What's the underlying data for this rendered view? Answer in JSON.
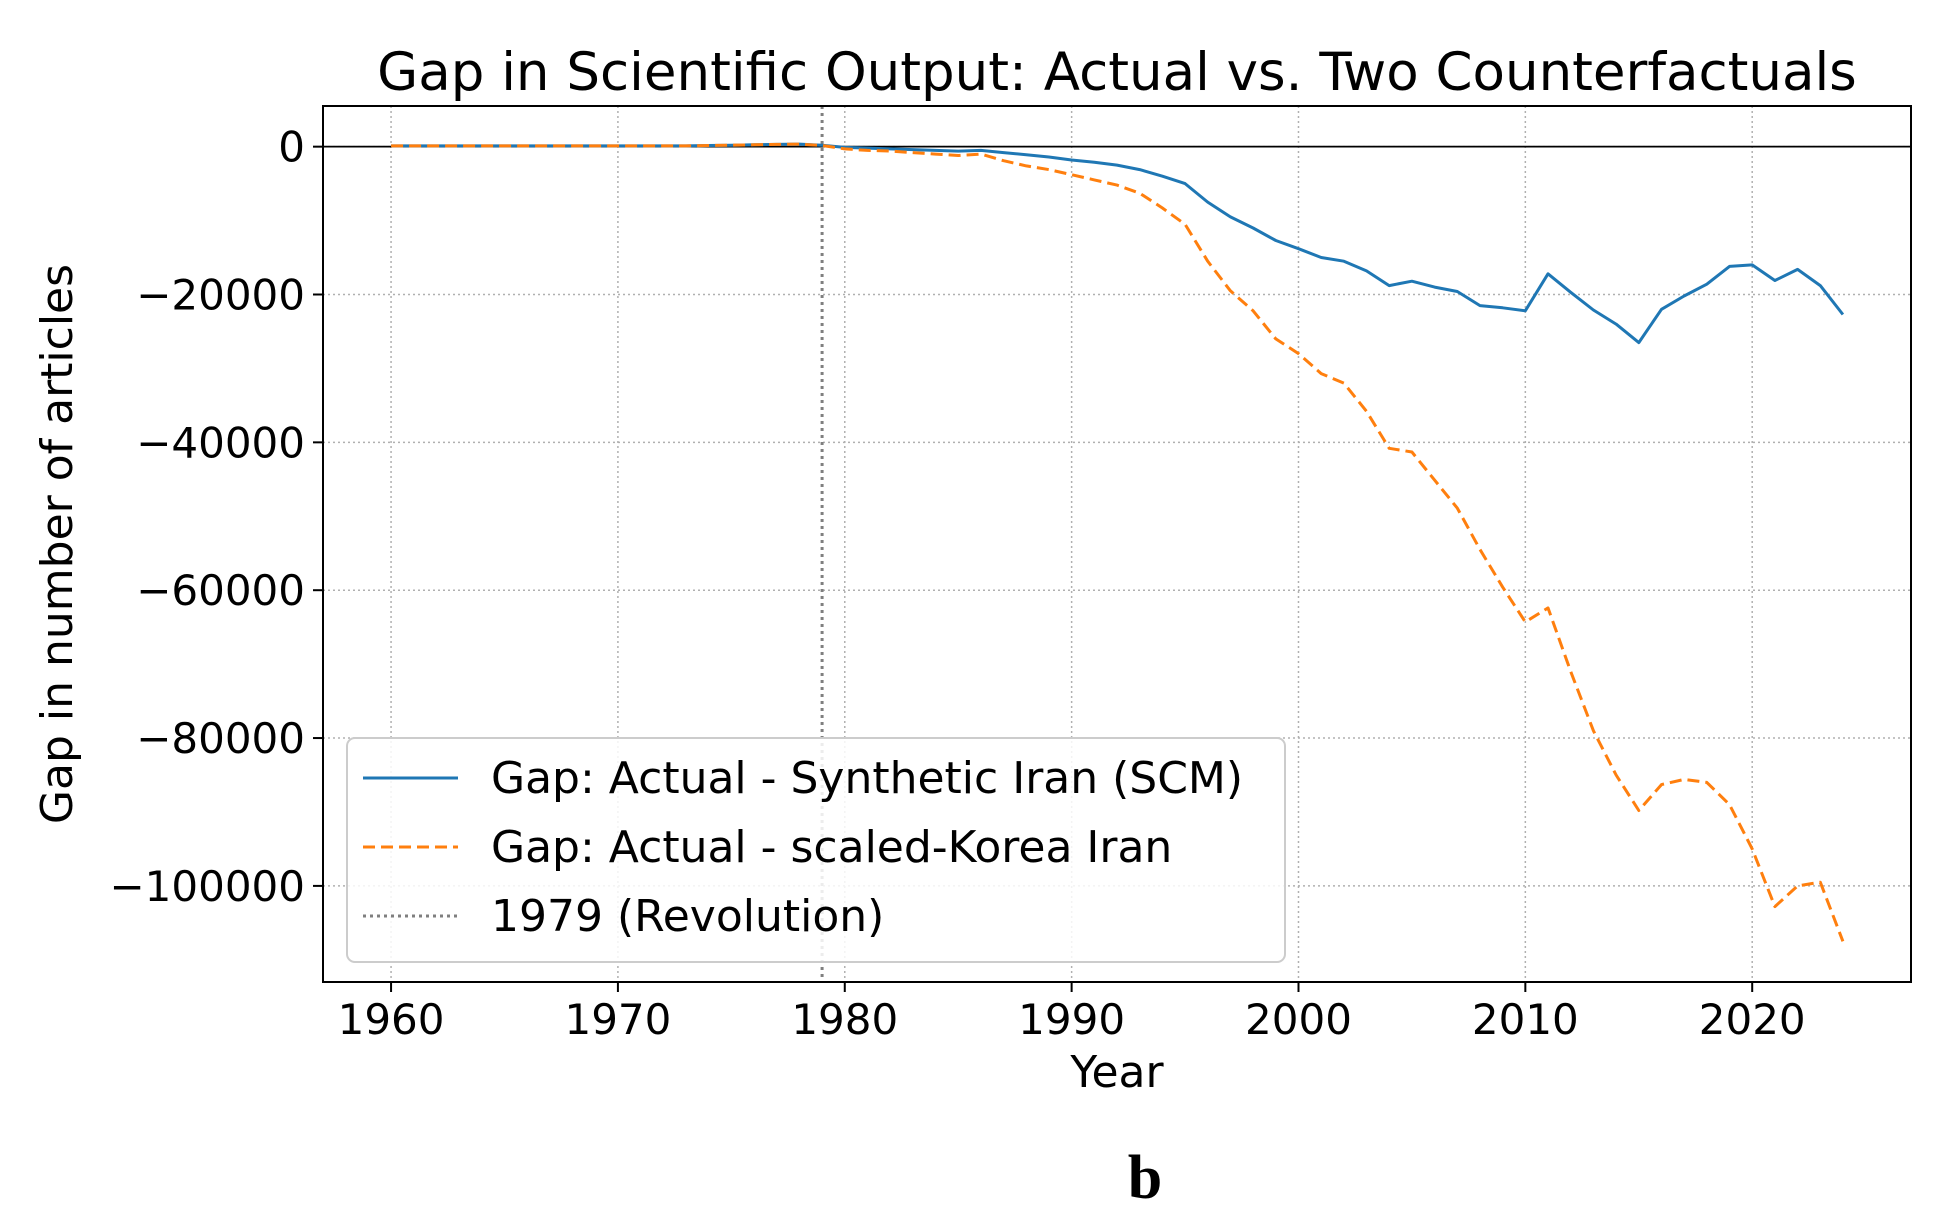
{
  "panel_label": "b",
  "chart_data": {
    "type": "line",
    "title": "Gap in Scientific Output: Actual vs. Two Counterfactuals",
    "xlabel": "Year",
    "ylabel": "Gap in number of articles",
    "xlim": [
      1957,
      2027
    ],
    "ylim": [
      -113000,
      5500
    ],
    "xticks": [
      1960,
      1970,
      1980,
      1990,
      2000,
      2010,
      2020
    ],
    "yticks": [
      0,
      -20000,
      -40000,
      -60000,
      -80000,
      -100000
    ],
    "ytick_labels": [
      "0",
      "−20000",
      "−40000",
      "−60000",
      "−80000",
      "−100000"
    ],
    "grid": true,
    "zero_line": 0,
    "vline": {
      "x": 1979,
      "label": "1979 (Revolution)",
      "color": "#7f7f7f"
    },
    "legend_position": "lower-left",
    "series": [
      {
        "name": "Gap: Actual - Synthetic Iran (SCM)",
        "color": "#1f77b4",
        "style": "solid",
        "x": [
          1960,
          1961,
          1962,
          1963,
          1964,
          1965,
          1966,
          1967,
          1968,
          1969,
          1970,
          1971,
          1972,
          1973,
          1974,
          1975,
          1976,
          1977,
          1978,
          1979,
          1980,
          1981,
          1982,
          1983,
          1984,
          1985,
          1986,
          1987,
          1988,
          1989,
          1990,
          1991,
          1992,
          1993,
          1994,
          1995,
          1996,
          1997,
          1998,
          1999,
          2000,
          2001,
          2002,
          2003,
          2004,
          2005,
          2006,
          2007,
          2008,
          2009,
          2010,
          2011,
          2012,
          2013,
          2014,
          2015,
          2016,
          2017,
          2018,
          2019,
          2020,
          2021,
          2022,
          2023,
          2024
        ],
        "values": [
          100,
          100,
          100,
          100,
          100,
          100,
          100,
          100,
          100,
          100,
          100,
          100,
          100,
          100,
          150,
          200,
          250,
          300,
          350,
          200,
          -100,
          -200,
          -300,
          -400,
          -500,
          -600,
          -500,
          -800,
          -1100,
          -1400,
          -1800,
          -2100,
          -2500,
          -3100,
          -4000,
          -5000,
          -7500,
          -9500,
          -11000,
          -12700,
          -13800,
          -15000,
          -15500,
          -16800,
          -18800,
          -18200,
          -19000,
          -19600,
          -21500,
          -21800,
          -22200,
          -17200,
          -19700,
          -22100,
          -24000,
          -26500,
          -22000,
          -20200,
          -18600,
          -16200,
          -16000,
          -18100,
          -16600,
          -18800,
          -22700
        ]
      },
      {
        "name": "Gap: Actual - scaled-Korea Iran",
        "color": "#ff7f0e",
        "style": "dashed",
        "x": [
          1960,
          1961,
          1962,
          1963,
          1964,
          1965,
          1966,
          1967,
          1968,
          1969,
          1970,
          1971,
          1972,
          1973,
          1974,
          1975,
          1976,
          1977,
          1978,
          1979,
          1980,
          1981,
          1982,
          1983,
          1984,
          1985,
          1986,
          1987,
          1988,
          1989,
          1990,
          1991,
          1992,
          1993,
          1994,
          1995,
          1996,
          1997,
          1998,
          1999,
          2000,
          2001,
          2002,
          2003,
          2004,
          2005,
          2006,
          2007,
          2008,
          2009,
          2010,
          2011,
          2012,
          2013,
          2014,
          2015,
          2016,
          2017,
          2018,
          2019,
          2020,
          2021,
          2022,
          2023,
          2024
        ],
        "values": [
          100,
          100,
          100,
          100,
          100,
          100,
          100,
          100,
          100,
          100,
          100,
          100,
          100,
          100,
          150,
          200,
          250,
          300,
          350,
          150,
          -300,
          -500,
          -600,
          -800,
          -1000,
          -1200,
          -1000,
          -1900,
          -2600,
          -3100,
          -3800,
          -4500,
          -5200,
          -6300,
          -8300,
          -10500,
          -15500,
          -19500,
          -22200,
          -26000,
          -28000,
          -30700,
          -32000,
          -35800,
          -40800,
          -41300,
          -45100,
          -48900,
          -54500,
          -59600,
          -64300,
          -62400,
          -71000,
          -79000,
          -85000,
          -89800,
          -86300,
          -85600,
          -86000,
          -89000,
          -95000,
          -102800,
          -100000,
          -99500,
          -107500
        ]
      }
    ]
  }
}
